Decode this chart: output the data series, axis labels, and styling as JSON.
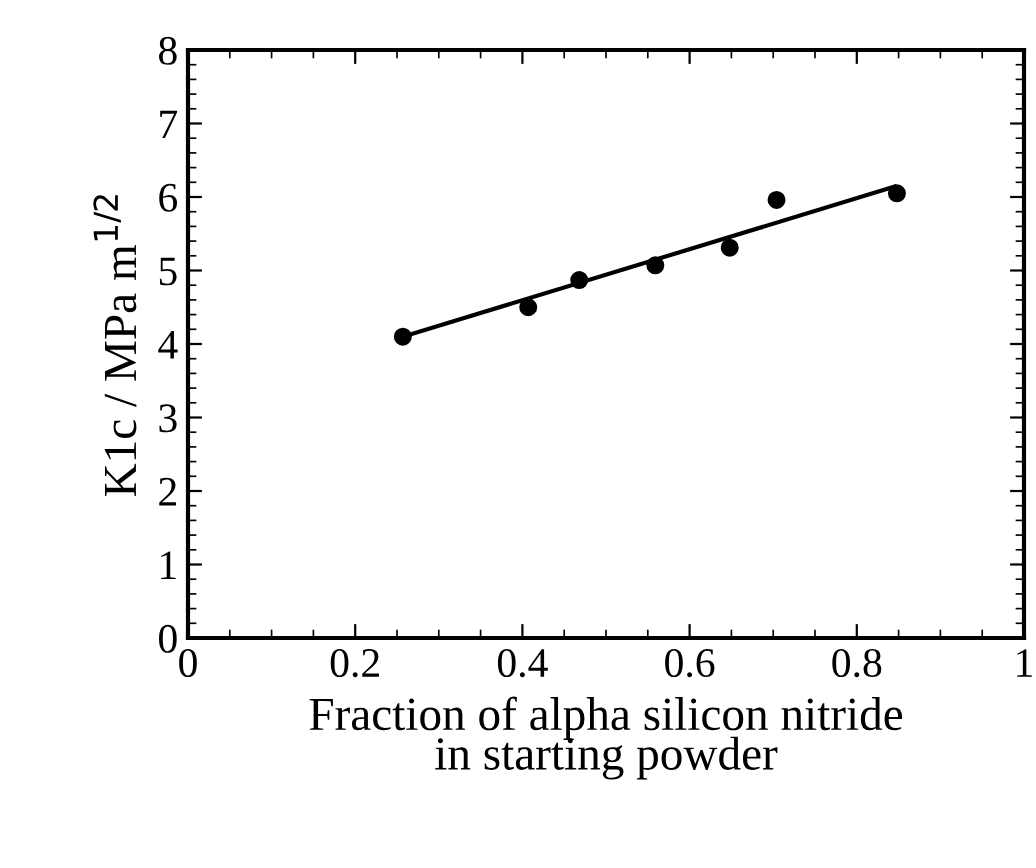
{
  "chart_data": {
    "type": "scatter",
    "xlabel": "Fraction of alpha silicon nitride\nin starting powder",
    "ylabel": "K1c / MPa m$^{1/2}$",
    "xlim": [
      0,
      1
    ],
    "ylim": [
      0,
      8
    ],
    "xticks": [
      0,
      0.2,
      0.4,
      0.6,
      0.8,
      1
    ],
    "yticks": [
      0,
      1,
      2,
      3,
      4,
      5,
      6,
      7,
      8
    ],
    "grid": false,
    "legend": false,
    "series": [
      {
        "color": "#000000",
        "marker": "circle",
        "x": [
          0.257,
          0.407,
          0.468,
          0.559,
          0.648,
          0.704,
          0.848
        ],
        "values": [
          4.1,
          4.5,
          4.87,
          5.07,
          5.31,
          5.96,
          6.05
        ]
      },
      {
        "type": "line",
        "color": "#000000",
        "marker": "none",
        "line_style": "solid",
        "x": [
          0.257,
          0.845
        ],
        "values": [
          4.1,
          6.14
        ]
      }
    ]
  }
}
